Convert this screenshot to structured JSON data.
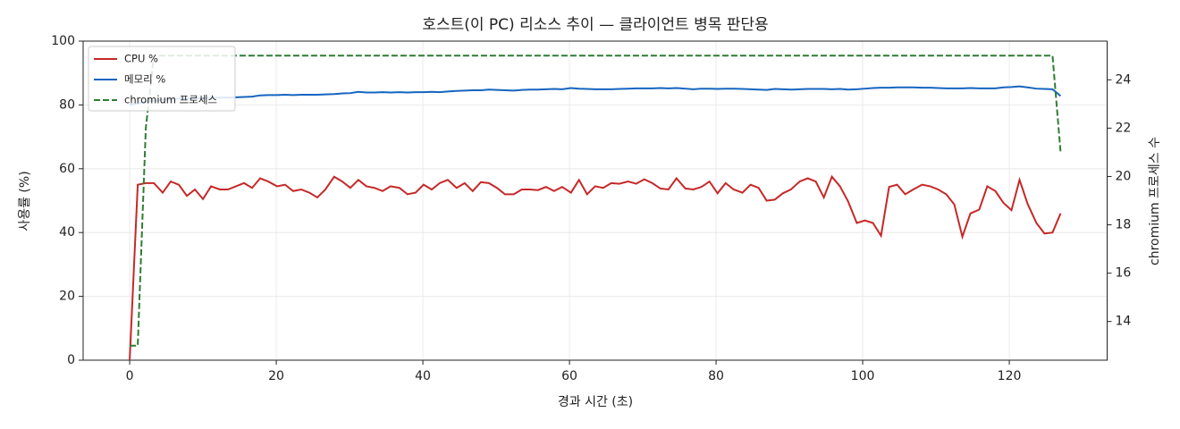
{
  "chart_data": {
    "type": "line",
    "title": "호스트(이 PC) 리소스 추이 — 클라이언트 병목 판단용",
    "x_label": "경과 시간 (초)",
    "y_label": "사용률 (%)",
    "y2_label": "chromium 프로세스 수",
    "x": [
      0,
      1.1,
      2.2,
      3.3,
      4.5,
      5.6,
      6.7,
      7.8,
      8.9,
      10.0,
      11.1,
      12.3,
      13.4,
      14.5,
      15.6,
      16.7,
      17.8,
      18.9,
      20.1,
      21.2,
      22.3,
      23.4,
      24.5,
      25.6,
      26.7,
      27.9,
      29.0,
      30.1,
      31.2,
      32.3,
      33.4,
      34.5,
      35.6,
      36.8,
      37.9,
      39.0,
      40.1,
      41.2,
      42.3,
      43.4,
      44.6,
      45.7,
      46.8,
      47.9,
      49.0,
      50.1,
      51.2,
      52.4,
      53.5,
      54.6,
      55.7,
      56.8,
      57.9,
      59.0,
      60.2,
      61.3,
      62.4,
      63.5,
      64.6,
      65.7,
      66.8,
      68.0,
      69.1,
      70.2,
      71.3,
      72.4,
      73.5,
      74.6,
      75.8,
      76.9,
      78.0,
      79.1,
      80.2,
      81.3,
      82.4,
      83.6,
      84.7,
      85.8,
      86.9,
      88.0,
      89.1,
      90.2,
      91.4,
      92.5,
      93.6,
      94.7,
      95.8,
      96.9,
      98.0,
      99.2,
      100.3,
      101.4,
      102.5,
      103.6,
      104.7,
      105.8,
      106.9,
      108.1,
      109.2,
      110.3,
      111.4,
      112.5,
      113.6,
      114.7,
      115.9,
      117.0,
      118.1,
      119.2,
      120.3,
      121.4,
      122.5,
      123.7,
      124.8,
      125.9,
      127.0
    ],
    "series": [
      {
        "name": "CPU %",
        "color": "#c62828",
        "linestyle": "solid",
        "values": [
          0,
          55,
          55.5,
          55.5,
          52.5,
          56,
          55,
          51.5,
          53.5,
          50.5,
          54.5,
          53.5,
          53.5,
          54.5,
          55.5,
          54,
          57,
          56,
          54.5,
          55,
          53,
          53.5,
          52.5,
          51,
          53.5,
          57.5,
          56,
          54,
          56.5,
          54.5,
          54,
          53,
          54.5,
          54,
          52,
          52.5,
          55,
          53.5,
          55.5,
          56.5,
          54,
          55.5,
          53,
          55.8,
          55.5,
          54,
          52,
          52,
          53.5,
          53.5,
          53.3,
          54.3,
          53,
          54.3,
          52.5,
          56.5,
          52,
          54.5,
          54,
          55.5,
          55.3,
          56,
          55.3,
          56.7,
          55.5,
          53.8,
          53.5,
          57,
          53.8,
          53.5,
          54.3,
          56,
          52.3,
          55.5,
          53.5,
          52.5,
          55,
          54,
          50,
          50.3,
          52.3,
          53.5,
          56,
          57,
          56,
          51,
          57.5,
          54.5,
          49.8,
          43,
          43.8,
          43,
          39,
          54.3,
          55,
          52,
          53.5,
          55,
          54.5,
          53.5,
          52,
          48.8,
          38.7,
          46,
          47.2,
          54.5,
          53,
          49.3,
          47,
          56.5,
          49,
          43,
          39.7,
          40,
          46
        ]
      },
      {
        "name": "메모리 %",
        "color": "#1565c0",
        "linestyle": "solid",
        "values": [
          80,
          80.5,
          81,
          81.3,
          81.6,
          81.8,
          82,
          82,
          82.1,
          82.2,
          82.2,
          82.3,
          82.3,
          82.4,
          82.5,
          82.6,
          83,
          83.1,
          83.1,
          83.2,
          83.1,
          83.2,
          83.2,
          83.2,
          83.3,
          83.4,
          83.6,
          83.7,
          84.1,
          83.9,
          83.9,
          84,
          83.9,
          84,
          83.9,
          84,
          84,
          84.1,
          84,
          84.2,
          84.4,
          84.5,
          84.6,
          84.6,
          84.8,
          84.7,
          84.6,
          84.5,
          84.7,
          84.8,
          84.8,
          84.9,
          85,
          84.9,
          85.3,
          85.1,
          85,
          84.9,
          84.9,
          84.9,
          85,
          85.1,
          85.2,
          85.2,
          85.2,
          85.3,
          85.2,
          85.3,
          85.1,
          84.9,
          85.1,
          85.1,
          85,
          85.1,
          85.1,
          85,
          84.9,
          84.8,
          84.7,
          85,
          84.9,
          84.8,
          84.9,
          85,
          85,
          85,
          84.9,
          85,
          84.8,
          84.9,
          85.1,
          85.3,
          85.4,
          85.4,
          85.5,
          85.5,
          85.5,
          85.4,
          85.4,
          85.3,
          85.2,
          85.2,
          85.2,
          85.3,
          85.2,
          85.2,
          85.2,
          85.5,
          85.6,
          85.8,
          85.5,
          85.1,
          85,
          84.9,
          82.8
        ]
      },
      {
        "name": "chromium 프로세스",
        "color": "#2e7d32",
        "linestyle": "dashed",
        "axis": "y2",
        "values": [
          13,
          13,
          22,
          25,
          25,
          25,
          25,
          25,
          25,
          25,
          25,
          25,
          25,
          25,
          25,
          25,
          25,
          25,
          25,
          25,
          25,
          25,
          25,
          25,
          25,
          25,
          25,
          25,
          25,
          25,
          25,
          25,
          25,
          25,
          25,
          25,
          25,
          25,
          25,
          25,
          25,
          25,
          25,
          25,
          25,
          25,
          25,
          25,
          25,
          25,
          25,
          25,
          25,
          25,
          25,
          25,
          25,
          25,
          25,
          25,
          25,
          25,
          25,
          25,
          25,
          25,
          25,
          25,
          25,
          25,
          25,
          25,
          25,
          25,
          25,
          25,
          25,
          25,
          25,
          25,
          25,
          25,
          25,
          25,
          25,
          25,
          25,
          25,
          25,
          25,
          25,
          25,
          25,
          25,
          25,
          25,
          25,
          25,
          25,
          25,
          25,
          25,
          25,
          25,
          25,
          25,
          25,
          25,
          25,
          25,
          25,
          25,
          25,
          25,
          21
        ]
      }
    ],
    "xlim": [
      -6.35,
      133.35
    ],
    "xticks": [
      0,
      20,
      40,
      60,
      80,
      100,
      120
    ],
    "ylim": [
      0,
      100
    ],
    "yticks": [
      0,
      20,
      40,
      60,
      80,
      100
    ],
    "y2lim": [
      12.4,
      25.6
    ],
    "y2ticks": [
      14,
      16,
      18,
      20,
      22,
      24
    ],
    "grid": true,
    "legend": "upper-left"
  }
}
